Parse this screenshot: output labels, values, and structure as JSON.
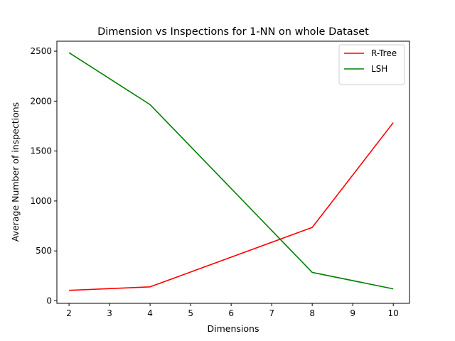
{
  "chart_data": {
    "type": "line",
    "title": "Dimension vs Inspections for 1-NN on whole Dataset",
    "xlabel": "Dimensions",
    "ylabel": "Average Number of inspections",
    "xlim": [
      1.7,
      10.4
    ],
    "ylim": [
      -25,
      2600
    ],
    "xticks": [
      2,
      3,
      4,
      5,
      6,
      7,
      8,
      9,
      10
    ],
    "yticks": [
      0,
      500,
      1000,
      1500,
      2000,
      2500
    ],
    "grid": false,
    "legend_position": "top-right",
    "series": [
      {
        "name": "R-Tree",
        "color": "#ff0000",
        "x": [
          2,
          4,
          8,
          10
        ],
        "y": [
          105,
          140,
          735,
          1785
        ]
      },
      {
        "name": "LSH",
        "color": "#008000",
        "x": [
          2,
          4,
          8,
          10
        ],
        "y": [
          2485,
          1965,
          285,
          120
        ]
      }
    ]
  }
}
